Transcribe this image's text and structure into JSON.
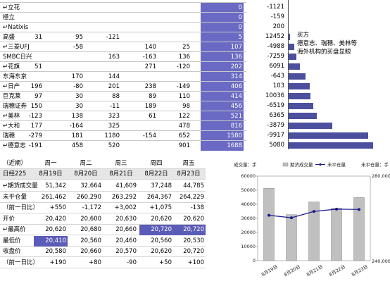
{
  "top_table": {
    "rows": [
      {
        "name": "↵立花",
        "c1": "",
        "c2": "",
        "c3": "",
        "c4": "",
        "c5": "",
        "total": "0"
      },
      {
        "name": "極立",
        "c1": "",
        "c2": "",
        "c3": "",
        "c4": "",
        "c5": "",
        "total": "0"
      },
      {
        "name": "↵Natixis",
        "c1": "",
        "c2": "",
        "c3": "",
        "c4": "",
        "c5": "",
        "total": "0"
      },
      {
        "name": "高盛",
        "c1": "31",
        "c2": "95",
        "c3": "-121",
        "c4": "",
        "c5": "",
        "total": "5"
      },
      {
        "name": "↵三菱UFJ",
        "c1": "",
        "c2": "-58",
        "c3": "",
        "c4": "140",
        "c5": "25",
        "total": "107"
      },
      {
        "name": "SMBC日兴",
        "c1": "",
        "c2": "",
        "c3": "163",
        "c4": "-163",
        "c5": "136",
        "total": "136"
      },
      {
        "name": "↵花旗",
        "c1": "51",
        "c2": "",
        "c3": "",
        "c4": "271",
        "c5": "-120",
        "total": "202"
      },
      {
        "name": "东海东京",
        "c1": "",
        "c2": "170",
        "c3": "144",
        "c4": "",
        "c5": "",
        "total": "314"
      },
      {
        "name": "↵日产",
        "c1": "196",
        "c2": "-80",
        "c3": "201",
        "c4": "238",
        "c5": "-149",
        "total": "406"
      },
      {
        "name": "巨克莱",
        "c1": "97",
        "c2": "30",
        "c3": "88",
        "c4": "89",
        "c5": "110",
        "total": "414"
      },
      {
        "name": "瑞穗证券",
        "c1": "150",
        "c2": "30",
        "c3": "-11",
        "c4": "189",
        "c5": "98",
        "total": "456"
      },
      {
        "name": "↵美林",
        "c1": "-123",
        "c2": "138",
        "c3": "323",
        "c4": "61",
        "c5": "122",
        "total": "521"
      },
      {
        "name": "↵大和",
        "c1": "177",
        "c2": "-164",
        "c3": "325",
        "c4": "",
        "c5": "478",
        "total": "816"
      },
      {
        "name": "瑞穗",
        "c1": "-279",
        "c2": "181",
        "c3": "1180",
        "c4": "-154",
        "c5": "652",
        "total": "1580"
      },
      {
        "name": "↵德意志",
        "c1": "-191",
        "c2": "458",
        "c3": "520",
        "c4": "",
        "c5": "901",
        "total": "1688"
      }
    ]
  },
  "right_bars": {
    "values": [
      -1121,
      -159,
      200,
      12452,
      -4988,
      -7259,
      6091,
      -643,
      103,
      10036,
      -6519,
      6365,
      -3879,
      -9917,
      5080
    ],
    "bar_levels": [
      0,
      0,
      0,
      0.02,
      0.07,
      0.09,
      0.13,
      0.2,
      0.25,
      0.26,
      0.29,
      0.33,
      0.52,
      0.94,
      1.0
    ],
    "annotation": [
      "买方",
      "德意志、瑞穗、美林等",
      "海外机构的买盘显眼"
    ]
  },
  "bottom_table": {
    "header_label": "（近期）",
    "weekdays": [
      "周一",
      "周二",
      "周三",
      "周四",
      "周五"
    ],
    "date_label": "日经225",
    "dates": [
      "8月19日",
      "8月20日",
      "8月21日",
      "8月22日",
      "8月23日"
    ],
    "rows": [
      {
        "label": "↵期货成交量",
        "values": [
          "51,342",
          "32,664",
          "41,609",
          "37,248",
          "44,785"
        ]
      },
      {
        "label": "未平仓量",
        "values": [
          "261,462",
          "260,290",
          "263,292",
          "264,367",
          "264,229"
        ]
      },
      {
        "label": "（前一日比）",
        "values": [
          "+550",
          "-1,172",
          "+3,002",
          "+1,075",
          "-138"
        ]
      },
      {
        "label": "开价",
        "values": [
          "20,420",
          "20,600",
          "20,630",
          "20,620",
          "20,620"
        ]
      },
      {
        "label": "↵最高价",
        "values": [
          "20,620",
          "20,680",
          "20,660",
          "20,720",
          "20,720"
        ]
      },
      {
        "label": "最低价",
        "values": [
          "20,410",
          "20,560",
          "20,460",
          "20,560",
          "20,530"
        ]
      },
      {
        "label": "收盘价",
        "values": [
          "20,580",
          "20,660",
          "20,570",
          "20,620",
          "20,720"
        ]
      },
      {
        "label": "（前一日比）",
        "values": [
          "+190",
          "+80",
          "-90",
          "+50",
          "+100"
        ]
      }
    ]
  },
  "chart_data": {
    "type": "bar",
    "categories": [
      "8月19日",
      "8月20日",
      "8月21日",
      "8月22日",
      "8月23日"
    ],
    "series": [
      {
        "name": "期货成交量",
        "type": "bar",
        "axis": "left",
        "values": [
          51342,
          32664,
          41609,
          37248,
          44785
        ]
      },
      {
        "name": "未平仓量",
        "type": "line",
        "axis": "right",
        "values": [
          261462,
          260290,
          263292,
          264367,
          264229
        ]
      }
    ],
    "left_unit": "成交量：手",
    "right_unit": "未平仓量：手",
    "left_ticks": [
      "0",
      "10000",
      "20000",
      "30000",
      "40000",
      "50000",
      "60000"
    ],
    "right_ticks": [
      "240,000",
      "280,000"
    ],
    "ylim_left": [
      0,
      60000
    ],
    "ylim_right": [
      240000,
      280000
    ],
    "colors": {
      "bar": "#c0c0c0",
      "line": "#1a1a8c"
    }
  }
}
